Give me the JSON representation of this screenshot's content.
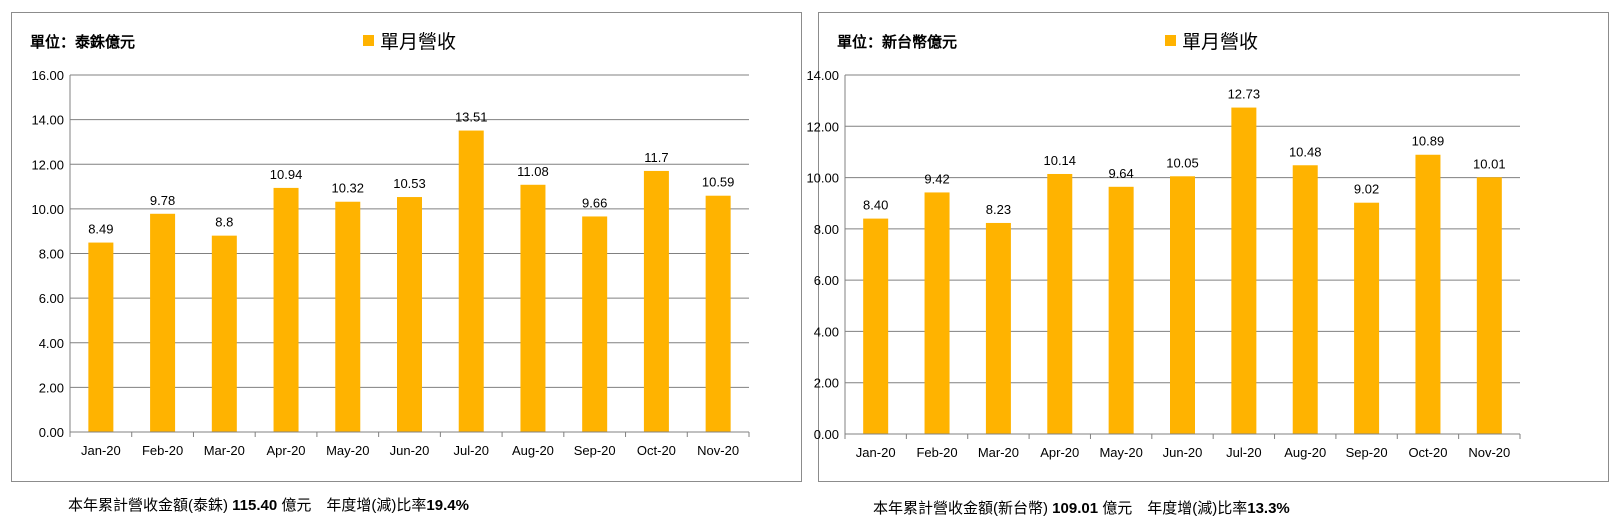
{
  "colors": {
    "bar": "#FFB300",
    "grid": "#808080",
    "axis": "#808080"
  },
  "charts": [
    {
      "unit_label": "單位：泰銖億元",
      "footer": {
        "prefix": "本年累計營收金額(泰銖)",
        "total": "115.40",
        "mid": "億元　年度增(減)比率",
        "rate": "19.4%"
      }
    },
    {
      "unit_label": "單位：新台幣億元",
      "footer": {
        "prefix": "本年累計營收金額(新台幣)",
        "total": "109.01",
        "mid": "億元　年度增(減)比率",
        "rate": "13.3%"
      }
    }
  ],
  "chart_data": [
    {
      "type": "bar",
      "categories": [
        "Jan-20",
        "Feb-20",
        "Mar-20",
        "Apr-20",
        "May-20",
        "Jun-20",
        "Jul-20",
        "Aug-20",
        "Sep-20",
        "Oct-20",
        "Nov-20"
      ],
      "series": [
        {
          "name": "單月營收",
          "values": [
            8.49,
            9.78,
            8.8,
            10.94,
            10.32,
            10.53,
            13.51,
            11.08,
            9.66,
            11.7,
            10.59
          ]
        }
      ],
      "data_labels": [
        "8.49",
        "9.78",
        "8.8",
        "10.94",
        "10.32",
        "10.53",
        "13.51",
        "11.08",
        "9.66",
        "11.7",
        "10.59"
      ],
      "y_ticks": [
        "0.00",
        "2.00",
        "4.00",
        "6.00",
        "8.00",
        "10.00",
        "12.00",
        "14.00",
        "16.00"
      ],
      "ylim": [
        0,
        16
      ],
      "grid": true,
      "legend": "top-center"
    },
    {
      "type": "bar",
      "categories": [
        "Jan-20",
        "Feb-20",
        "Mar-20",
        "Apr-20",
        "May-20",
        "Jun-20",
        "Jul-20",
        "Aug-20",
        "Sep-20",
        "Oct-20",
        "Nov-20"
      ],
      "series": [
        {
          "name": "單月營收",
          "values": [
            8.4,
            9.42,
            8.23,
            10.14,
            9.64,
            10.05,
            12.73,
            10.48,
            9.02,
            10.89,
            10.01
          ]
        }
      ],
      "data_labels": [
        "8.40",
        "9.42",
        "8.23",
        "10.14",
        "9.64",
        "10.05",
        "12.73",
        "10.48",
        "9.02",
        "10.89",
        "10.01"
      ],
      "y_ticks": [
        "0.00",
        "2.00",
        "4.00",
        "6.00",
        "8.00",
        "10.00",
        "12.00",
        "14.00"
      ],
      "ylim": [
        0,
        14
      ],
      "grid": true,
      "legend": "top-center"
    }
  ]
}
